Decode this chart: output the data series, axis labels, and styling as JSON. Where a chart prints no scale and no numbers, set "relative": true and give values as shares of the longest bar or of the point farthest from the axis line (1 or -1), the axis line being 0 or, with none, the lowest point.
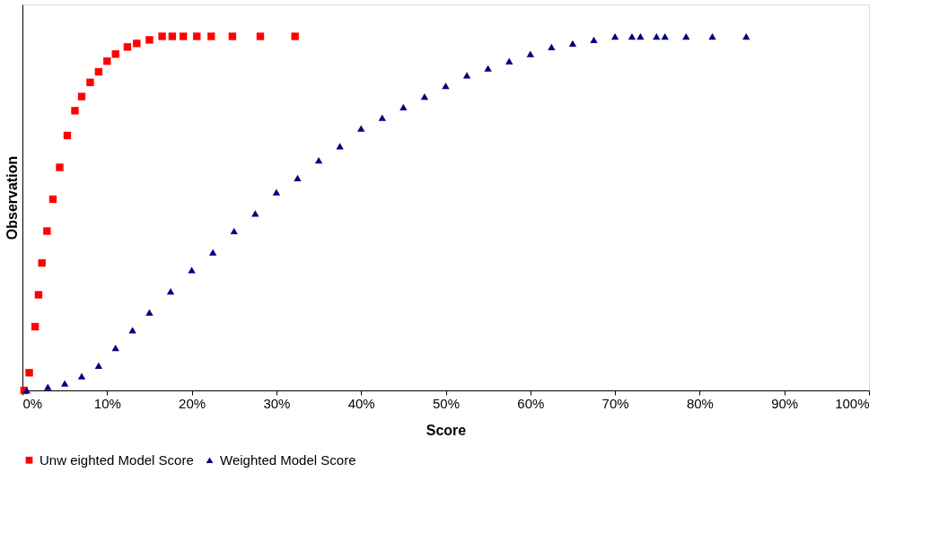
{
  "chart_data": {
    "type": "scatter",
    "relative": true,
    "xlabel": "Score",
    "ylabel": "Observation",
    "legend": "bottom",
    "grid": false,
    "xlim": [
      0,
      100
    ],
    "xticks": [
      {
        "value": 0,
        "label": "0%"
      },
      {
        "value": 10,
        "label": "10%"
      },
      {
        "value": 20,
        "label": "20%"
      },
      {
        "value": 30,
        "label": "30%"
      },
      {
        "value": 40,
        "label": "40%"
      },
      {
        "value": 50,
        "label": "50%"
      },
      {
        "value": 60,
        "label": "60%"
      },
      {
        "value": 70,
        "label": "70%"
      },
      {
        "value": 80,
        "label": "80%"
      },
      {
        "value": 90,
        "label": "90%"
      },
      {
        "value": 100,
        "label": "100%"
      }
    ],
    "series": [
      {
        "name": "Unw eighted Model Score",
        "color": "#ff0000",
        "marker": "square",
        "x": [
          0.2,
          0.8,
          1.5,
          1.9,
          2.3,
          2.9,
          3.6,
          4.4,
          5.3,
          6.2,
          7.0,
          8.0,
          9.0,
          10.0,
          11.0,
          12.4,
          13.5,
          15.0,
          16.5,
          17.7,
          19.0,
          20.6,
          22.3,
          24.8,
          28.1,
          32.2
        ],
        "values": [
          0.0,
          0.05,
          0.18,
          0.27,
          0.36,
          0.45,
          0.54,
          0.63,
          0.72,
          0.79,
          0.83,
          0.87,
          0.9,
          0.93,
          0.95,
          0.97,
          0.98,
          0.99,
          1.0,
          1.0,
          1.0,
          1.0,
          1.0,
          1.0,
          1.0,
          1.0
        ]
      },
      {
        "name": "Weighted Model Score",
        "color": "#000080",
        "marker": "triangle",
        "x": [
          0.5,
          3,
          5,
          7,
          9,
          11,
          13,
          15,
          17.5,
          20,
          22.5,
          25,
          27.5,
          30,
          32.5,
          35,
          37.5,
          40,
          42.5,
          45,
          47.5,
          50,
          52.5,
          55,
          57.5,
          60,
          62.5,
          65,
          67.5,
          70,
          72,
          73,
          74.9,
          75.9,
          78.4,
          81.5,
          85.5
        ],
        "values": [
          0.0,
          0.01,
          0.02,
          0.04,
          0.07,
          0.12,
          0.17,
          0.22,
          0.28,
          0.34,
          0.39,
          0.45,
          0.5,
          0.56,
          0.6,
          0.65,
          0.69,
          0.74,
          0.77,
          0.8,
          0.83,
          0.86,
          0.89,
          0.91,
          0.93,
          0.95,
          0.97,
          0.98,
          0.99,
          1.0,
          1.0,
          1.0,
          1.0,
          1.0,
          1.0,
          1.0,
          1.0
        ]
      }
    ]
  }
}
